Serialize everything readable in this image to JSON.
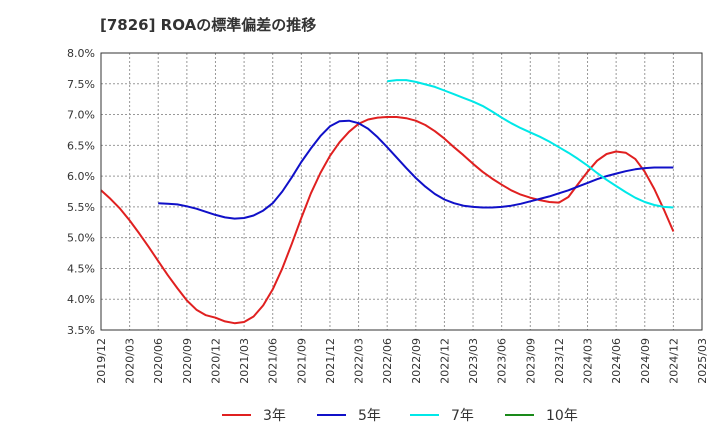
{
  "chart_data": {
    "type": "line",
    "title": "[7826]  ROAの標準偏差の推移",
    "xlabel": "",
    "ylabel": "",
    "ylim": [
      3.5,
      8.0
    ],
    "y_ticks": [
      "8.0%",
      "7.5%",
      "7.0%",
      "6.5%",
      "6.0%",
      "5.5%",
      "5.0%",
      "4.5%",
      "4.0%",
      "3.5%"
    ],
    "y_tick_values": [
      8.0,
      7.5,
      7.0,
      6.5,
      6.0,
      5.5,
      5.0,
      4.5,
      4.0,
      3.5
    ],
    "x_ticks": [
      "2019/12",
      "2020/03",
      "2020/06",
      "2020/09",
      "2020/12",
      "2021/03",
      "2021/06",
      "2021/09",
      "2021/12",
      "2022/03",
      "2022/06",
      "2022/09",
      "2022/12",
      "2023/03",
      "2023/06",
      "2023/09",
      "2023/12",
      "2024/03",
      "2024/06",
      "2024/09",
      "2024/12",
      "2025/03"
    ],
    "grid": true,
    "legend_position": "bottom",
    "series": [
      {
        "name": "3年",
        "color": "#e02020",
        "points": [
          [
            "2019/12",
            5.77
          ],
          [
            "2020/01",
            5.63
          ],
          [
            "2020/02",
            5.47
          ],
          [
            "2020/03",
            5.28
          ],
          [
            "2020/04",
            5.07
          ],
          [
            "2020/05",
            4.85
          ],
          [
            "2020/06",
            4.62
          ],
          [
            "2020/07",
            4.39
          ],
          [
            "2020/08",
            4.18
          ],
          [
            "2020/09",
            3.98
          ],
          [
            "2020/10",
            3.83
          ],
          [
            "2020/11",
            3.74
          ],
          [
            "2020/12",
            3.7
          ],
          [
            "2021/01",
            3.64
          ],
          [
            "2021/02",
            3.61
          ],
          [
            "2021/03",
            3.63
          ],
          [
            "2021/04",
            3.72
          ],
          [
            "2021/05",
            3.9
          ],
          [
            "2021/06",
            4.16
          ],
          [
            "2021/07",
            4.5
          ],
          [
            "2021/08",
            4.9
          ],
          [
            "2021/09",
            5.32
          ],
          [
            "2021/10",
            5.72
          ],
          [
            "2021/11",
            6.05
          ],
          [
            "2021/12",
            6.33
          ],
          [
            "2022/01",
            6.55
          ],
          [
            "2022/02",
            6.72
          ],
          [
            "2022/03",
            6.85
          ],
          [
            "2022/04",
            6.92
          ],
          [
            "2022/05",
            6.95
          ],
          [
            "2022/06",
            6.96
          ],
          [
            "2022/07",
            6.96
          ],
          [
            "2022/08",
            6.94
          ],
          [
            "2022/09",
            6.9
          ],
          [
            "2022/10",
            6.83
          ],
          [
            "2022/11",
            6.73
          ],
          [
            "2022/12",
            6.61
          ],
          [
            "2023/01",
            6.47
          ],
          [
            "2023/02",
            6.34
          ],
          [
            "2023/03",
            6.2
          ],
          [
            "2023/04",
            6.07
          ],
          [
            "2023/05",
            5.96
          ],
          [
            "2023/06",
            5.86
          ],
          [
            "2023/07",
            5.77
          ],
          [
            "2023/08",
            5.7
          ],
          [
            "2023/09",
            5.65
          ],
          [
            "2023/10",
            5.61
          ],
          [
            "2023/11",
            5.58
          ],
          [
            "2023/12",
            5.57
          ],
          [
            "2024/01",
            5.66
          ],
          [
            "2024/02",
            5.87
          ],
          [
            "2024/03",
            6.07
          ],
          [
            "2024/04",
            6.25
          ],
          [
            "2024/05",
            6.36
          ],
          [
            "2024/06",
            6.4
          ],
          [
            "2024/07",
            6.38
          ],
          [
            "2024/08",
            6.28
          ],
          [
            "2024/09",
            6.07
          ],
          [
            "2024/10",
            5.79
          ],
          [
            "2024/11",
            5.46
          ],
          [
            "2024/12",
            5.1
          ]
        ]
      },
      {
        "name": "5年",
        "color": "#1010c8",
        "points": [
          [
            "2020/06",
            5.56
          ],
          [
            "2020/07",
            5.55
          ],
          [
            "2020/08",
            5.54
          ],
          [
            "2020/09",
            5.51
          ],
          [
            "2020/10",
            5.47
          ],
          [
            "2020/11",
            5.42
          ],
          [
            "2020/12",
            5.37
          ],
          [
            "2021/01",
            5.33
          ],
          [
            "2021/02",
            5.31
          ],
          [
            "2021/03",
            5.32
          ],
          [
            "2021/04",
            5.36
          ],
          [
            "2021/05",
            5.44
          ],
          [
            "2021/06",
            5.56
          ],
          [
            "2021/07",
            5.75
          ],
          [
            "2021/08",
            5.98
          ],
          [
            "2021/09",
            6.23
          ],
          [
            "2021/10",
            6.45
          ],
          [
            "2021/11",
            6.65
          ],
          [
            "2021/12",
            6.81
          ],
          [
            "2022/01",
            6.89
          ],
          [
            "2022/02",
            6.9
          ],
          [
            "2022/03",
            6.86
          ],
          [
            "2022/04",
            6.77
          ],
          [
            "2022/05",
            6.63
          ],
          [
            "2022/06",
            6.47
          ],
          [
            "2022/07",
            6.3
          ],
          [
            "2022/08",
            6.13
          ],
          [
            "2022/09",
            5.97
          ],
          [
            "2022/10",
            5.83
          ],
          [
            "2022/11",
            5.71
          ],
          [
            "2022/12",
            5.62
          ],
          [
            "2023/01",
            5.56
          ],
          [
            "2023/02",
            5.52
          ],
          [
            "2023/03",
            5.5
          ],
          [
            "2023/04",
            5.49
          ],
          [
            "2023/05",
            5.49
          ],
          [
            "2023/06",
            5.5
          ],
          [
            "2023/07",
            5.52
          ],
          [
            "2023/08",
            5.55
          ],
          [
            "2023/09",
            5.59
          ],
          [
            "2023/10",
            5.63
          ],
          [
            "2023/11",
            5.67
          ],
          [
            "2023/12",
            5.72
          ],
          [
            "2024/01",
            5.77
          ],
          [
            "2024/02",
            5.83
          ],
          [
            "2024/03",
            5.89
          ],
          [
            "2024/04",
            5.95
          ],
          [
            "2024/05",
            6.0
          ],
          [
            "2024/06",
            6.04
          ],
          [
            "2024/07",
            6.08
          ],
          [
            "2024/08",
            6.11
          ],
          [
            "2024/09",
            6.13
          ],
          [
            "2024/10",
            6.14
          ],
          [
            "2024/11",
            6.14
          ],
          [
            "2024/12",
            6.14
          ]
        ]
      },
      {
        "name": "7年",
        "color": "#00e8e8",
        "points": [
          [
            "2022/06",
            7.54
          ],
          [
            "2022/07",
            7.56
          ],
          [
            "2022/08",
            7.56
          ],
          [
            "2022/09",
            7.53
          ],
          [
            "2022/10",
            7.49
          ],
          [
            "2022/11",
            7.45
          ],
          [
            "2022/12",
            7.39
          ],
          [
            "2023/01",
            7.33
          ],
          [
            "2023/02",
            7.27
          ],
          [
            "2023/03",
            7.21
          ],
          [
            "2023/04",
            7.14
          ],
          [
            "2023/05",
            7.05
          ],
          [
            "2023/06",
            6.95
          ],
          [
            "2023/07",
            6.86
          ],
          [
            "2023/08",
            6.78
          ],
          [
            "2023/09",
            6.71
          ],
          [
            "2023/10",
            6.64
          ],
          [
            "2023/11",
            6.56
          ],
          [
            "2023/12",
            6.47
          ],
          [
            "2024/01",
            6.38
          ],
          [
            "2024/02",
            6.28
          ],
          [
            "2024/03",
            6.17
          ],
          [
            "2024/04",
            6.05
          ],
          [
            "2024/05",
            5.94
          ],
          [
            "2024/06",
            5.84
          ],
          [
            "2024/07",
            5.74
          ],
          [
            "2024/08",
            5.65
          ],
          [
            "2024/09",
            5.58
          ],
          [
            "2024/10",
            5.53
          ],
          [
            "2024/11",
            5.5
          ],
          [
            "2024/12",
            5.49
          ]
        ]
      },
      {
        "name": "10年",
        "color": "#1a8a1a",
        "points": []
      }
    ]
  }
}
